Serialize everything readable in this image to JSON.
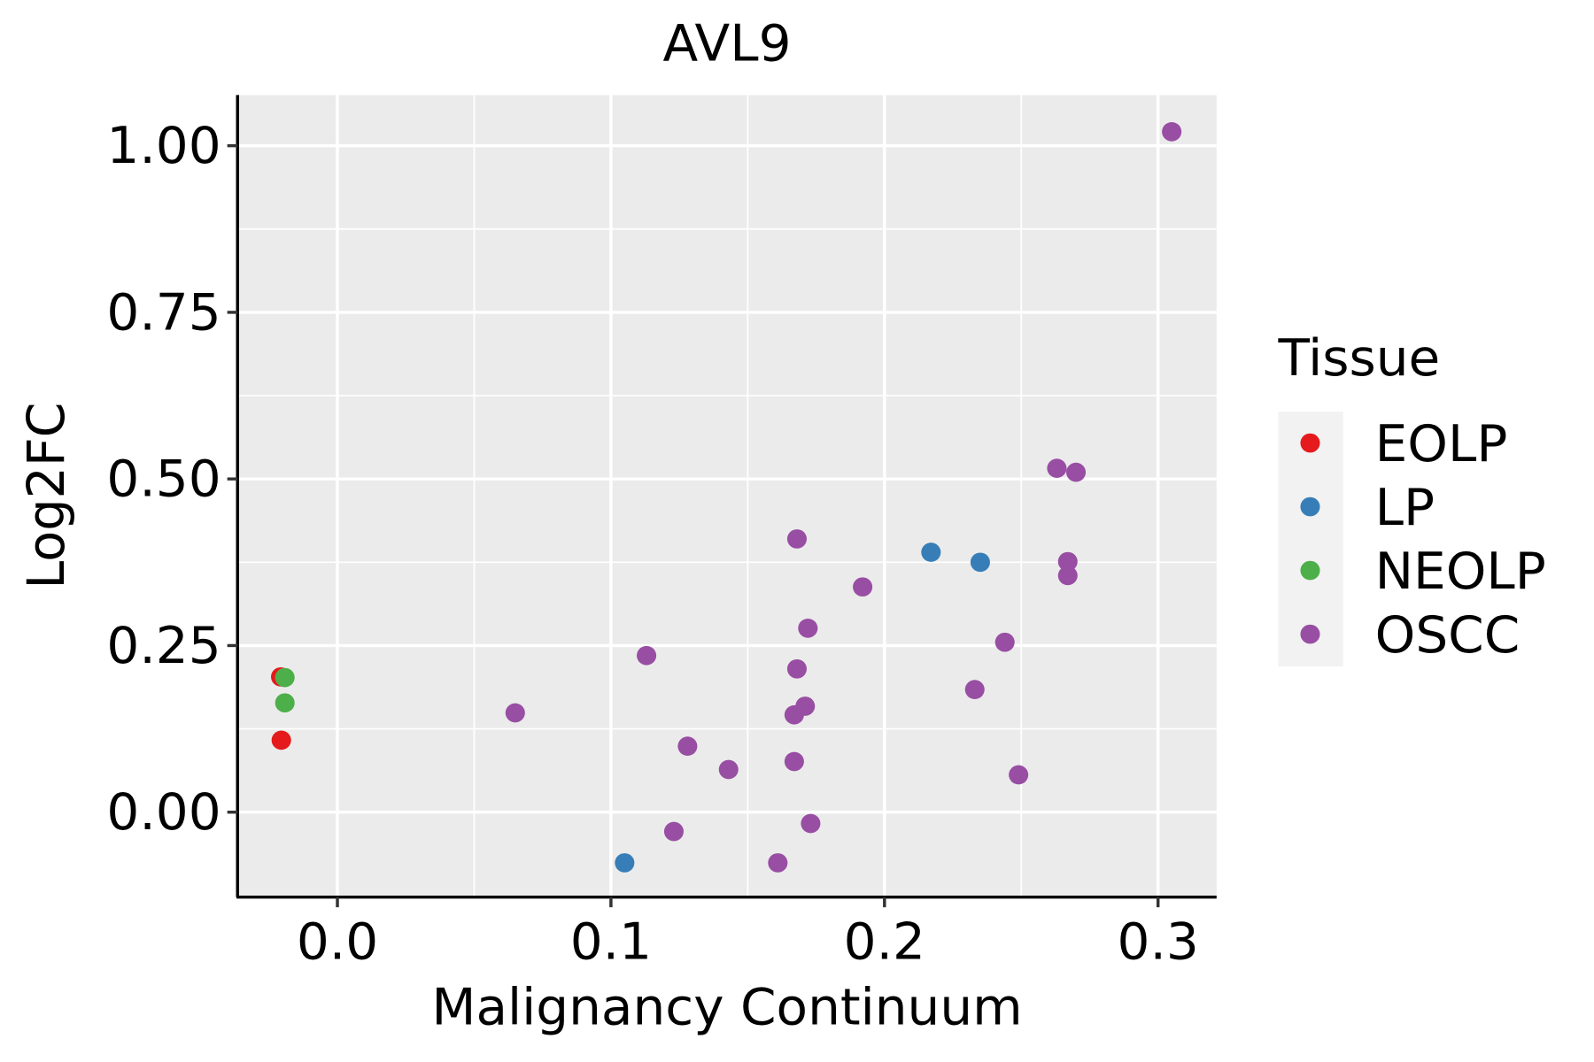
{
  "chart_data": {
    "type": "scatter",
    "title": "AVL9",
    "xlabel": "Malignancy Continuum",
    "ylabel": "Log2FC",
    "xlim": [
      -0.0365,
      0.3214
    ],
    "ylim": [
      -0.1275,
      1.076
    ],
    "xticks": [
      0.0,
      0.1,
      0.2,
      0.3
    ],
    "xtick_labels": [
      "0.0",
      "0.1",
      "0.2",
      "0.3"
    ],
    "yticks": [
      0.0,
      0.25,
      0.5,
      0.75,
      1.0
    ],
    "ytick_labels": [
      "0.00",
      "0.25",
      "0.50",
      "0.75",
      "1.00"
    ],
    "grid": true,
    "legend": {
      "title": "Tissue",
      "placement": "right"
    },
    "series": [
      {
        "name": "EOLP",
        "color": "#E41A1C",
        "points": [
          [
            -0.0207,
            0.203
          ],
          [
            -0.0205,
            0.108
          ]
        ]
      },
      {
        "name": "LP",
        "color": "#377EB8",
        "points": [
          [
            0.105,
            -0.076
          ],
          [
            0.217,
            0.39
          ],
          [
            0.235,
            0.375
          ]
        ]
      },
      {
        "name": "NEOLP",
        "color": "#4DAF4A",
        "points": [
          [
            -0.0192,
            0.202
          ],
          [
            -0.0192,
            0.164
          ]
        ]
      },
      {
        "name": "OSCC",
        "color": "#984EA3",
        "points": [
          [
            0.305,
            1.021
          ],
          [
            0.263,
            0.516
          ],
          [
            0.27,
            0.51
          ],
          [
            0.168,
            0.41
          ],
          [
            0.267,
            0.376
          ],
          [
            0.267,
            0.355
          ],
          [
            0.192,
            0.338
          ],
          [
            0.172,
            0.276
          ],
          [
            0.244,
            0.255
          ],
          [
            0.113,
            0.235
          ],
          [
            0.168,
            0.215
          ],
          [
            0.233,
            0.184
          ],
          [
            0.171,
            0.159
          ],
          [
            0.167,
            0.146
          ],
          [
            0.065,
            0.149
          ],
          [
            0.128,
            0.099
          ],
          [
            0.167,
            0.076
          ],
          [
            0.143,
            0.064
          ],
          [
            0.249,
            0.056
          ],
          [
            0.173,
            -0.017
          ],
          [
            0.123,
            -0.029
          ],
          [
            0.161,
            -0.076
          ]
        ]
      }
    ]
  }
}
